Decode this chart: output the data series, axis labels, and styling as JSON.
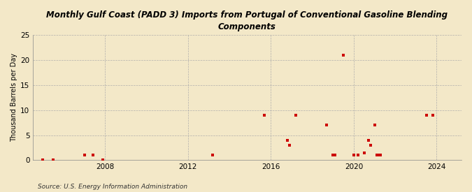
{
  "title": "Monthly Gulf Coast (PADD 3) Imports from Portugal of Conventional Gasoline Blending\nComponents",
  "ylabel": "Thousand Barrels per Day",
  "source": "Source: U.S. Energy Information Administration",
  "background_color": "#f3e8c8",
  "plot_bg_color": "#f3e8c8",
  "marker_color": "#cc0000",
  "marker_size": 3.5,
  "xlim": [
    2004.5,
    2025.2
  ],
  "ylim": [
    0,
    25
  ],
  "yticks": [
    0,
    5,
    10,
    15,
    20,
    25
  ],
  "xticks": [
    2008,
    2012,
    2016,
    2020,
    2024
  ],
  "data_points": [
    [
      2005.0,
      0.1
    ],
    [
      2005.5,
      0.1
    ],
    [
      2007.0,
      1.0
    ],
    [
      2007.4,
      1.0
    ],
    [
      2007.9,
      0.1
    ],
    [
      2013.2,
      1.0
    ],
    [
      2015.7,
      9.0
    ],
    [
      2016.8,
      4.0
    ],
    [
      2016.9,
      3.0
    ],
    [
      2017.2,
      9.0
    ],
    [
      2018.7,
      7.0
    ],
    [
      2019.0,
      1.0
    ],
    [
      2019.1,
      1.0
    ],
    [
      2019.5,
      21.0
    ],
    [
      2020.0,
      1.0
    ],
    [
      2020.2,
      1.0
    ],
    [
      2020.5,
      1.5
    ],
    [
      2020.7,
      4.0
    ],
    [
      2020.8,
      3.0
    ],
    [
      2021.0,
      7.0
    ],
    [
      2021.1,
      1.0
    ],
    [
      2021.2,
      1.0
    ],
    [
      2021.3,
      1.0
    ],
    [
      2023.5,
      9.0
    ],
    [
      2023.8,
      9.0
    ]
  ]
}
